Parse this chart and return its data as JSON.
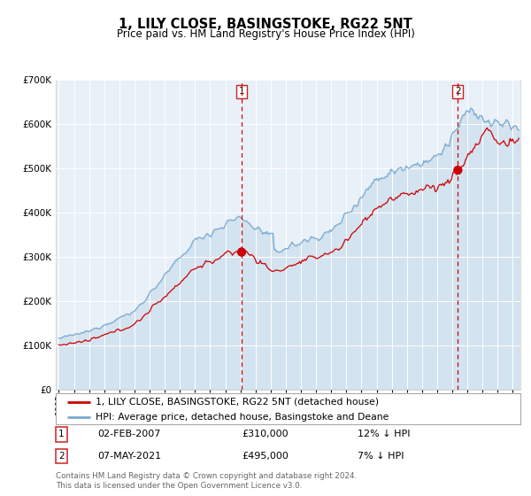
{
  "title": "1, LILY CLOSE, BASINGSTOKE, RG22 5NT",
  "subtitle": "Price paid vs. HM Land Registry's House Price Index (HPI)",
  "legend_line1": "1, LILY CLOSE, BASINGSTOKE, RG22 5NT (detached house)",
  "legend_line2": "HPI: Average price, detached house, Basingstoke and Deane",
  "annotation1_label": "1",
  "annotation1_date": "02-FEB-2007",
  "annotation1_price": "£310,000",
  "annotation1_hpi": "12% ↓ HPI",
  "annotation1_year": 2007.08,
  "annotation1_value": 310000,
  "annotation2_label": "2",
  "annotation2_date": "07-MAY-2021",
  "annotation2_price": "£495,000",
  "annotation2_hpi": "7% ↓ HPI",
  "annotation2_year": 2021.37,
  "annotation2_value": 495000,
  "ylim": [
    0,
    700000
  ],
  "xlim_start": 1994.8,
  "xlim_end": 2025.5,
  "background_color": "#e8f0f8",
  "red_line_color": "#cc0000",
  "blue_line_color": "#7aabcf",
  "footer": "Contains HM Land Registry data © Crown copyright and database right 2024.\nThis data is licensed under the Open Government Licence v3.0.",
  "title_fontsize": 10.5,
  "subtitle_fontsize": 9
}
